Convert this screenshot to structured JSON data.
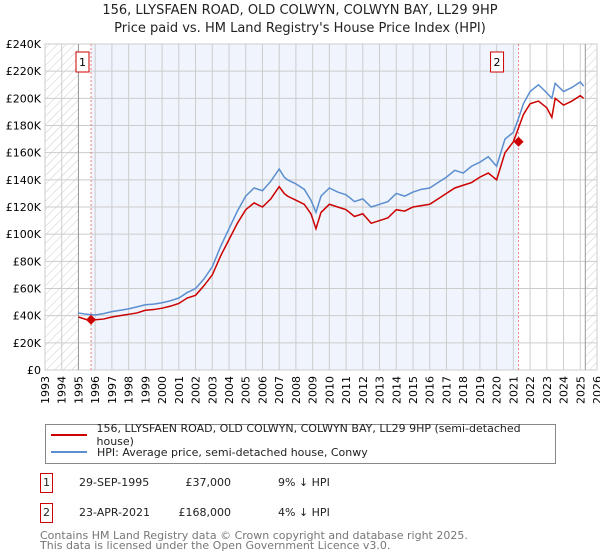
{
  "chart_data": {
    "type": "line",
    "title": "156, LLYSFAEN ROAD, OLD COLWYN, COLWYN BAY, LL29 9HP",
    "subtitle": "Price paid vs. HM Land Registry's House Price Index (HPI)",
    "xlim": [
      1993,
      2026
    ],
    "ylim": [
      0,
      240000
    ],
    "x_ticks": [
      "1993",
      "1994",
      "1995",
      "1996",
      "1997",
      "1998",
      "1999",
      "2000",
      "2001",
      "2002",
      "2003",
      "2004",
      "2005",
      "2006",
      "2007",
      "2008",
      "2009",
      "2010",
      "2011",
      "2012",
      "2013",
      "2014",
      "2015",
      "2016",
      "2017",
      "2018",
      "2019",
      "2020",
      "2021",
      "2022",
      "2023",
      "2024",
      "2025",
      "2026"
    ],
    "y_ticks": [
      "£0",
      "£20K",
      "£40K",
      "£60K",
      "£80K",
      "£100K",
      "£120K",
      "£140K",
      "£160K",
      "£180K",
      "£200K",
      "£220K",
      "£240K"
    ],
    "grid": true,
    "series": [
      {
        "name": "156, LLYSFAEN ROAD, OLD COLWYN, COLWYN BAY, LL29 9HP (semi-detached house)",
        "color": "#cc0000",
        "x": [
          1995.0,
          1995.5,
          1996,
          1996.5,
          1997,
          1997.5,
          1998,
          1998.5,
          1999,
          1999.5,
          2000,
          2000.5,
          2001,
          2001.5,
          2002,
          2002.5,
          2003,
          2003.5,
          2004,
          2004.5,
          2005,
          2005.5,
          2006,
          2006.5,
          2007,
          2007.3,
          2007.5,
          2008,
          2008.5,
          2008.9,
          2009.2,
          2009.5,
          2010,
          2010.5,
          2011,
          2011.5,
          2012,
          2012.5,
          2013,
          2013.5,
          2014,
          2014.5,
          2015,
          2015.5,
          2016,
          2016.5,
          2017,
          2017.5,
          2018,
          2018.5,
          2019,
          2019.5,
          2020,
          2020.5,
          2021,
          2021.3,
          2021.6,
          2022,
          2022.5,
          2023,
          2023.3,
          2023.5,
          2024,
          2024.5,
          2025,
          2025.2
        ],
        "y": [
          39000,
          37000,
          37000,
          37500,
          39000,
          40000,
          41000,
          42000,
          44000,
          44500,
          45500,
          47000,
          49000,
          53000,
          55000,
          62000,
          70000,
          84000,
          96000,
          108000,
          118000,
          123000,
          120000,
          126000,
          135000,
          130000,
          128000,
          125000,
          122000,
          115000,
          104000,
          116000,
          122000,
          120000,
          118000,
          113000,
          115000,
          108000,
          110000,
          112000,
          118000,
          117000,
          120000,
          121000,
          122000,
          126000,
          130000,
          134000,
          136000,
          138000,
          142000,
          145000,
          140000,
          160000,
          168000,
          178000,
          188000,
          196000,
          198000,
          193000,
          186000,
          200000,
          195000,
          198000,
          202000,
          200000
        ]
      },
      {
        "name": "HPI: Average price, semi-detached house, Conwy",
        "color": "#5b8fd0",
        "x": [
          1995.0,
          1995.5,
          1996,
          1996.5,
          1997,
          1997.5,
          1998,
          1998.5,
          1999,
          1999.5,
          2000,
          2000.5,
          2001,
          2001.5,
          2002,
          2002.5,
          2003,
          2003.5,
          2004,
          2004.5,
          2005,
          2005.5,
          2006,
          2006.5,
          2007,
          2007.3,
          2007.5,
          2008,
          2008.5,
          2008.9,
          2009.2,
          2009.5,
          2010,
          2010.5,
          2011,
          2011.5,
          2012,
          2012.5,
          2013,
          2013.5,
          2014,
          2014.5,
          2015,
          2015.5,
          2016,
          2016.5,
          2017,
          2017.5,
          2018,
          2018.5,
          2019,
          2019.5,
          2020,
          2020.5,
          2021,
          2021.3,
          2021.6,
          2022,
          2022.5,
          2023,
          2023.3,
          2023.5,
          2024,
          2024.5,
          2025,
          2025.2
        ],
        "y": [
          42000,
          41000,
          40500,
          41500,
          43000,
          44000,
          45000,
          46500,
          48000,
          48500,
          49500,
          51000,
          53000,
          57000,
          60000,
          67000,
          76000,
          91000,
          104000,
          117000,
          128000,
          134000,
          132000,
          139000,
          148000,
          142000,
          140000,
          137000,
          133000,
          125000,
          116000,
          128000,
          134000,
          131000,
          129000,
          124000,
          126000,
          120000,
          122000,
          124000,
          130000,
          128000,
          131000,
          133000,
          134000,
          138000,
          142000,
          147000,
          145000,
          150000,
          153000,
          157000,
          150000,
          170000,
          175000,
          185000,
          196000,
          205000,
          210000,
          204000,
          200000,
          211000,
          205000,
          208000,
          212000,
          209000
        ]
      }
    ],
    "sales": [
      {
        "id": "1",
        "x": 1995.75,
        "y": 37000,
        "date": "29-SEP-1995",
        "price": "£37,000",
        "hpi": "9% ↓ HPI"
      },
      {
        "id": "2",
        "x": 2021.31,
        "y": 168000,
        "date": "23-APR-2021",
        "price": "£168,000",
        "hpi": "4% ↓ HPI"
      }
    ]
  },
  "legend": {
    "red": "156, LLYSFAEN ROAD, OLD COLWYN, COLWYN BAY, LL29 9HP (semi-detached house)",
    "blue": "HPI: Average price, semi-detached house, Conwy"
  },
  "footer": {
    "line1": "Contains HM Land Registry data © Crown copyright and database right 2025.",
    "line2": "This data is licensed under the Open Government Licence v3.0."
  }
}
